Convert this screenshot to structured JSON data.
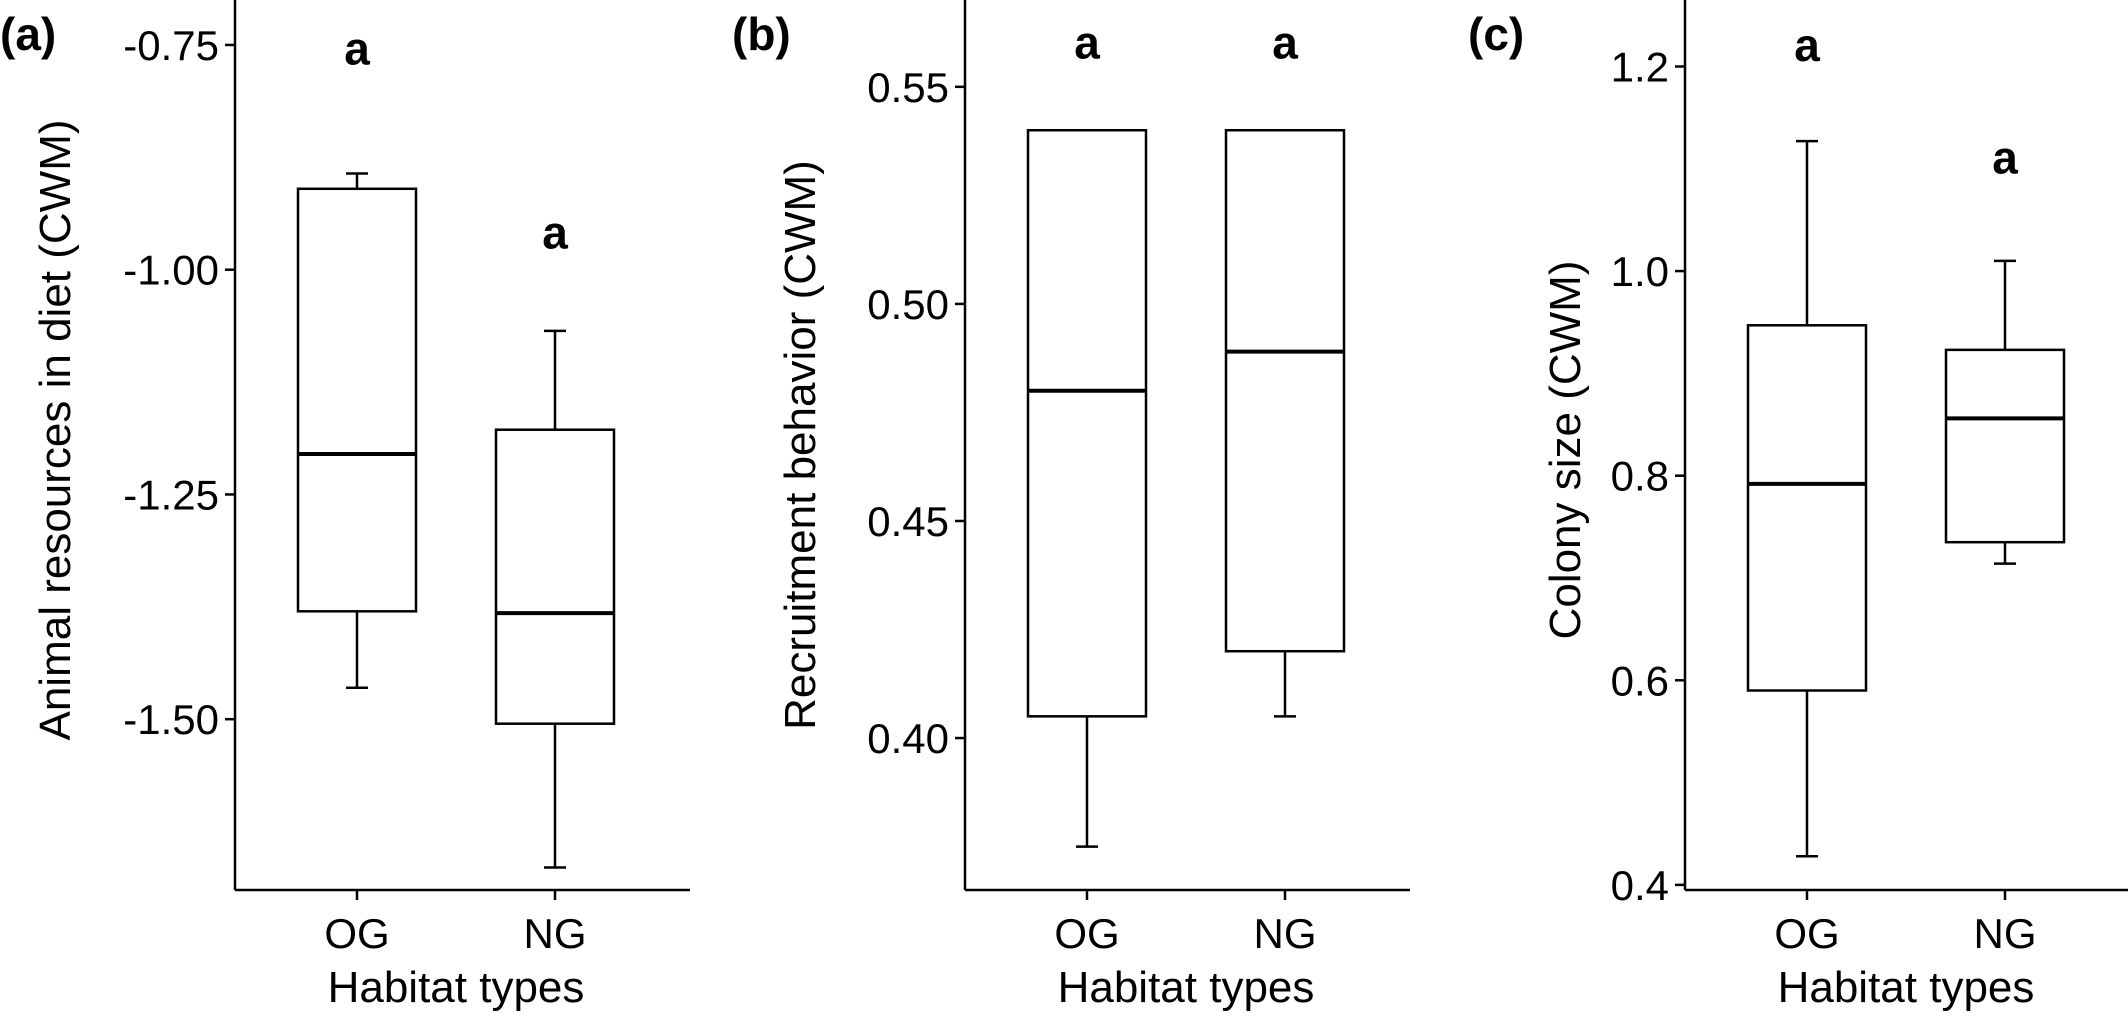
{
  "chart_data": [
    {
      "type": "boxplot",
      "panel_label": "(a)",
      "xlabel": "Habitat types",
      "ylabel": "Animal resources in diet (CWM)",
      "ylim": [
        -1.69,
        -0.7
      ],
      "yticks": [
        "-0.75",
        "-1.00",
        "-1.25",
        "-1.50"
      ],
      "ytick_values": [
        -0.75,
        -1.0,
        -1.25,
        -1.5
      ],
      "categories": [
        "OG",
        "NG"
      ],
      "boxes": [
        {
          "category": "OG",
          "whisker_low": -1.465,
          "q1": -1.38,
          "median": -1.205,
          "q3": -0.91,
          "whisker_high": -0.893
        },
        {
          "category": "NG",
          "whisker_low": -1.665,
          "q1": -1.505,
          "median": -1.382,
          "q3": -1.178,
          "whisker_high": -1.068
        }
      ],
      "letters": [
        "a",
        "a"
      ],
      "letter_values": [
        -0.755,
        -0.96
      ]
    },
    {
      "type": "boxplot",
      "panel_label": "(b)",
      "xlabel": "Habitat types",
      "ylabel": "Recruitment behavior (CWM)",
      "ylim": [
        0.365,
        0.57
      ],
      "yticks": [
        "0.55",
        "0.50",
        "0.45",
        "0.40"
      ],
      "ytick_values": [
        0.55,
        0.5,
        0.45,
        0.4
      ],
      "categories": [
        "OG",
        "NG"
      ],
      "boxes": [
        {
          "category": "OG",
          "whisker_low": 0.375,
          "q1": 0.405,
          "median": 0.48,
          "q3": 0.54,
          "whisker_high": 0.54
        },
        {
          "category": "NG",
          "whisker_low": 0.405,
          "q1": 0.42,
          "median": 0.489,
          "q3": 0.54,
          "whisker_high": 0.54
        }
      ],
      "letters": [
        "a",
        "a"
      ],
      "letter_values": [
        0.56,
        0.56
      ]
    },
    {
      "type": "boxplot",
      "panel_label": "(c)",
      "xlabel": "Habitat types",
      "ylabel": "Colony size (CWM)",
      "ylim": [
        0.395,
        1.265
      ],
      "yticks": [
        "1.2",
        "1.0",
        "0.8",
        "0.6",
        "0.4"
      ],
      "ytick_values": [
        1.2,
        1.0,
        0.8,
        0.6,
        0.4
      ],
      "categories": [
        "OG",
        "NG"
      ],
      "boxes": [
        {
          "category": "OG",
          "whisker_low": 0.428,
          "q1": 0.59,
          "median": 0.792,
          "q3": 0.947,
          "whisker_high": 1.127
        },
        {
          "category": "NG",
          "whisker_low": 0.714,
          "q1": 0.735,
          "median": 0.856,
          "q3": 0.923,
          "whisker_high": 1.01
        }
      ],
      "letters": [
        "a",
        "a"
      ],
      "letter_values": [
        1.22,
        1.11
      ]
    }
  ]
}
